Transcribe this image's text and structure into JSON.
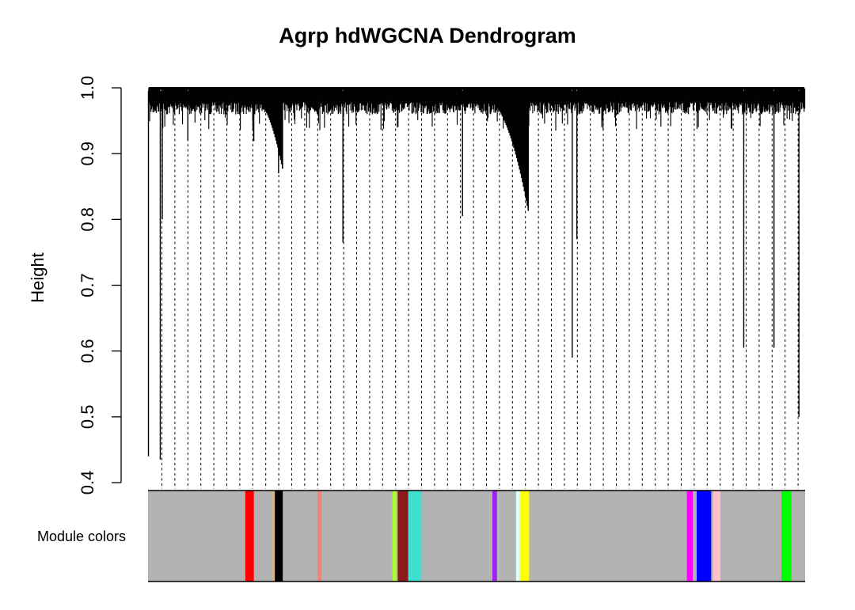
{
  "chart_data": {
    "type": "dendrogram",
    "title": "Agrp hdWGCNA Dendrogram",
    "ylabel": "Height",
    "xlabel": "",
    "ylim": [
      0.4,
      1.0
    ],
    "yticks": [
      "0.4",
      "0.5",
      "0.6",
      "0.7",
      "0.8",
      "0.9",
      "1.0"
    ],
    "leaf_count": 1000,
    "top_merge_height": 1.0,
    "main_clusters": [
      {
        "leaf_start": 0,
        "leaf_end": 206,
        "min_height": 0.87
      },
      {
        "leaf_start": 206,
        "leaf_end": 580,
        "min_height": 0.805
      },
      {
        "leaf_start": 580,
        "leaf_end": 1000,
        "min_height": 0.89
      }
    ],
    "deep_branches": [
      {
        "leaf": 0,
        "height": 0.44
      },
      {
        "leaf": 18,
        "height": 0.435
      },
      {
        "leaf": 21,
        "height": 0.8
      },
      {
        "leaf": 60,
        "height": 0.92
      },
      {
        "leaf": 198,
        "height": 0.87
      },
      {
        "leaf": 296,
        "height": 0.765
      },
      {
        "leaf": 478,
        "height": 0.805
      },
      {
        "leaf": 645,
        "height": 0.59
      },
      {
        "leaf": 652,
        "height": 0.77
      },
      {
        "leaf": 906,
        "height": 0.605
      },
      {
        "leaf": 952,
        "height": 0.605
      },
      {
        "leaf": 990,
        "height": 0.5
      }
    ],
    "color_bar": {
      "label": "Module colors",
      "background": "#B3B3B3",
      "segments": [
        {
          "module": "red",
          "color": "#FF0000",
          "from": 148,
          "to": 161
        },
        {
          "module": "tan",
          "color": "#D2B48C",
          "from": 189,
          "to": 193
        },
        {
          "module": "black",
          "color": "#000000",
          "from": 193,
          "to": 205
        },
        {
          "module": "salmon",
          "color": "#FA8072",
          "from": 258,
          "to": 264
        },
        {
          "module": "greenyellow",
          "color": "#ADFF2F",
          "from": 372,
          "to": 378
        },
        {
          "module": "darkred",
          "color": "#8B1A1A",
          "from": 380,
          "to": 396
        },
        {
          "module": "turquoise",
          "color": "#40E0D0",
          "from": 396,
          "to": 416
        },
        {
          "module": "purple",
          "color": "#A020F0",
          "from": 524,
          "to": 531
        },
        {
          "module": "cyan",
          "color": "#E0FFFF",
          "from": 560,
          "to": 566
        },
        {
          "module": "yellow",
          "color": "#FFFF00",
          "from": 566,
          "to": 580
        },
        {
          "module": "magenta",
          "color": "#FF00FF",
          "from": 820,
          "to": 829
        },
        {
          "module": "blue",
          "color": "#0000FF",
          "from": 835,
          "to": 857
        },
        {
          "module": "pink",
          "color": "#FFC0CB",
          "from": 860,
          "to": 871
        },
        {
          "module": "green",
          "color": "#00FF00",
          "from": 964,
          "to": 979
        }
      ]
    }
  }
}
